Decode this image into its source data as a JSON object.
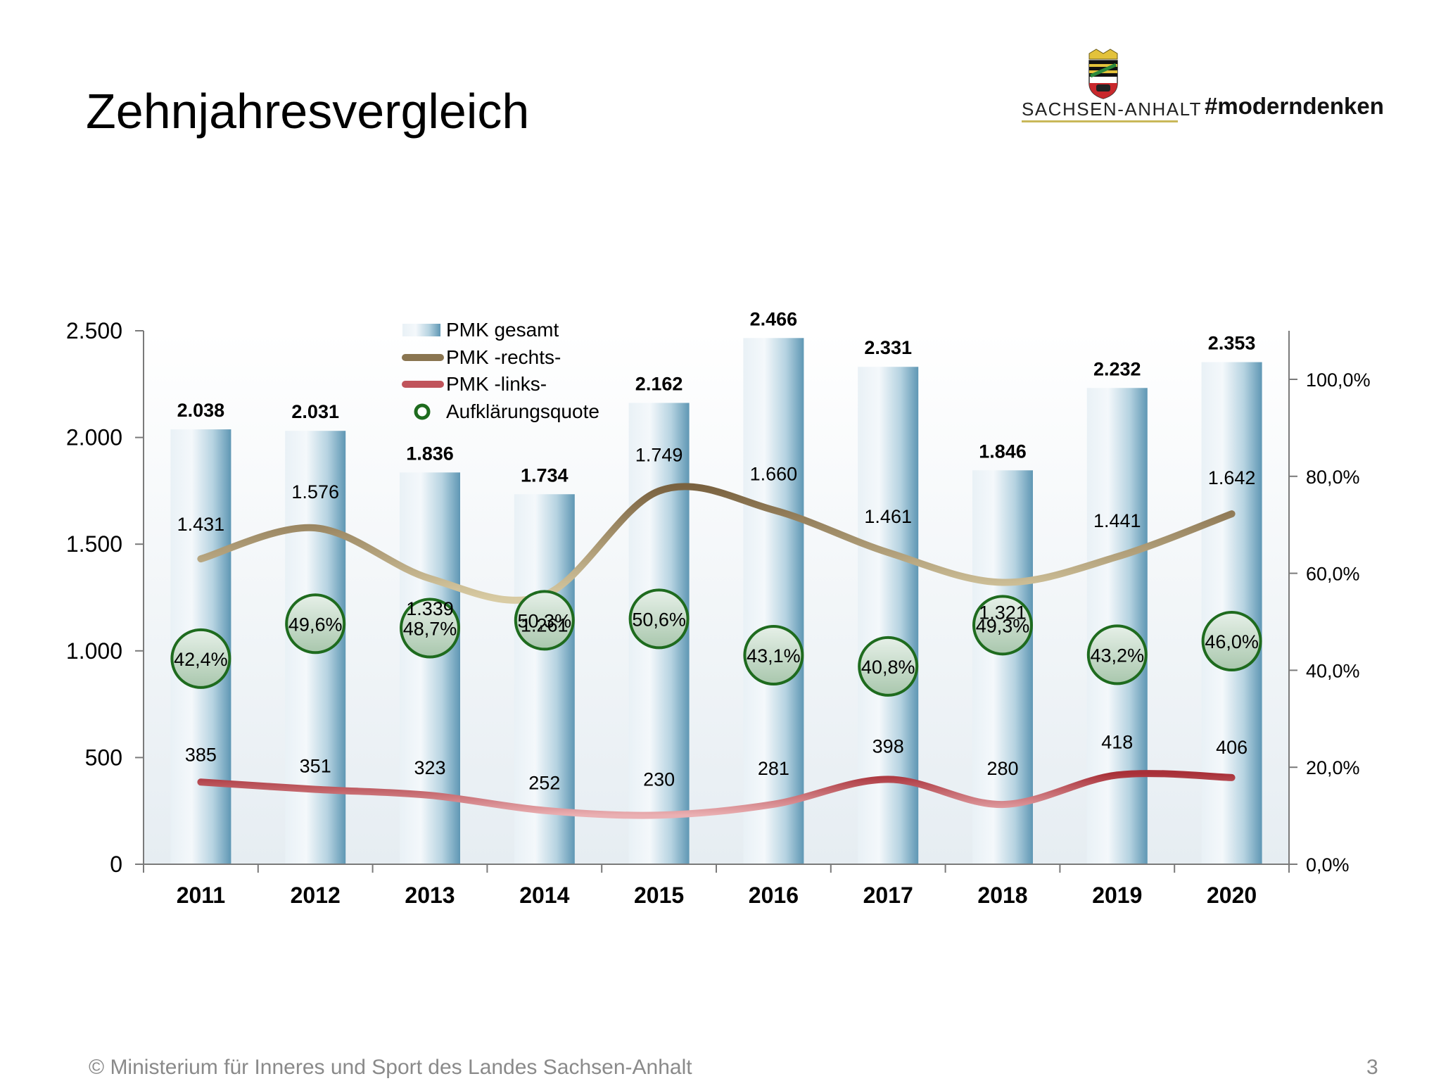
{
  "page": {
    "title": "Zehnjahresvergleich",
    "logo_text": "SACHSEN-ANHALT",
    "hashtag": "#moderndenken",
    "footer": "© Ministerium für Inneres und Sport des Landes Sachsen-Anhalt",
    "page_number": "3"
  },
  "chart_data": {
    "type": "bar",
    "categories": [
      "2011",
      "2012",
      "2013",
      "2014",
      "2015",
      "2016",
      "2017",
      "2018",
      "2019",
      "2020"
    ],
    "series": [
      {
        "name": "PMK gesamt",
        "type": "bar",
        "axis": "left",
        "values": [
          2038,
          2031,
          1836,
          1734,
          2162,
          2466,
          2331,
          1846,
          2232,
          2353
        ],
        "labels": [
          "2.038",
          "2.031",
          "1.836",
          "1.734",
          "2.162",
          "2.466",
          "2.331",
          "1.846",
          "2.232",
          "2.353"
        ]
      },
      {
        "name": "PMK -rechts-",
        "type": "line",
        "axis": "left",
        "values": [
          1431,
          1576,
          1339,
          1261,
          1749,
          1660,
          1461,
          1321,
          1441,
          1642
        ],
        "labels": [
          "1.431",
          "1.576",
          "1.339",
          "1.261",
          "1.749",
          "1.660",
          "1.461",
          "1.321",
          "1.441",
          "1.642"
        ]
      },
      {
        "name": "PMK -links-",
        "type": "line",
        "axis": "left",
        "values": [
          385,
          351,
          323,
          252,
          230,
          281,
          398,
          280,
          418,
          406
        ],
        "labels": [
          "385",
          "351",
          "323",
          "252",
          "230",
          "281",
          "398",
          "280",
          "418",
          "406"
        ]
      },
      {
        "name": "Aufklärungsquote",
        "type": "scatter",
        "axis": "right",
        "values": [
          42.4,
          49.6,
          48.7,
          50.3,
          50.6,
          43.1,
          40.8,
          49.3,
          43.2,
          46.0
        ],
        "labels": [
          "42,4%",
          "49,6%",
          "48,7%",
          "50,3%",
          "50,6%",
          "43,1%",
          "40,8%",
          "49,3%",
          "43,2%",
          "46,0%"
        ]
      }
    ],
    "left_axis": {
      "range": [
        0,
        2500
      ],
      "ticks": [
        0,
        500,
        1000,
        1500,
        2000,
        2500
      ],
      "tick_labels": [
        "0",
        "500",
        "1.000",
        "1.500",
        "2.000",
        "2.500"
      ]
    },
    "right_axis": {
      "range": [
        0,
        110
      ],
      "ticks": [
        0,
        20,
        40,
        60,
        80,
        100
      ],
      "tick_labels": [
        "0,0%",
        "20,0%",
        "40,0%",
        "60,0%",
        "80,0%",
        "100,0%"
      ]
    },
    "legend_position": "top-left",
    "grid": false,
    "colors": {
      "bar": "#7fb0c8",
      "rechts": "#8a7550",
      "links": "#b5404a",
      "quote": "#1e6b1e"
    }
  }
}
